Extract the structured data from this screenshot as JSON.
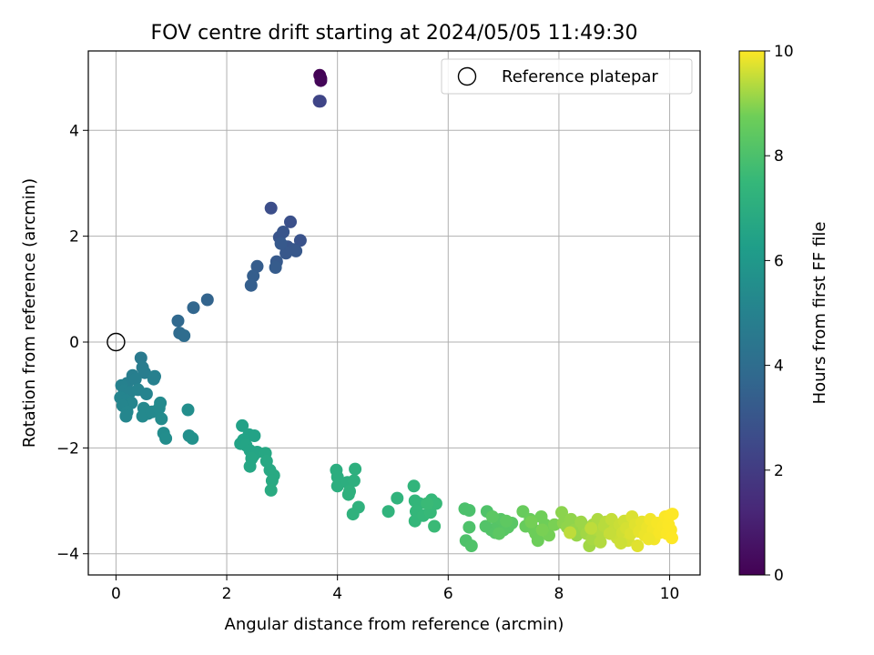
{
  "chart_data": {
    "type": "scatter",
    "title": "FOV centre drift starting at 2024/05/05 11:49:30",
    "xlabel": "Angular distance from reference (arcmin)",
    "ylabel": "Rotation from reference (arcmin)",
    "xlim": [
      -0.5,
      10.55
    ],
    "ylim": [
      -4.4,
      5.5
    ],
    "xticks": [
      0,
      2,
      4,
      6,
      8,
      10
    ],
    "yticks": [
      -4,
      -2,
      0,
      2,
      4
    ],
    "grid": true,
    "legend": {
      "placement": "upper-right",
      "entries": [
        "Reference platepar"
      ]
    },
    "reference": {
      "x": 0,
      "y": 0
    },
    "colorbar": {
      "label": "Hours from first FF file",
      "range": [
        0,
        10
      ],
      "ticks": [
        0,
        2,
        4,
        6,
        8,
        10
      ],
      "colormap": "viridis"
    },
    "points": [
      [
        3.68,
        5.04,
        0.05
      ],
      [
        3.7,
        4.98,
        0.1
      ],
      [
        3.7,
        4.94,
        0.15
      ],
      [
        3.67,
        4.55,
        2.3
      ],
      [
        3.69,
        4.55,
        2.35
      ],
      [
        2.8,
        2.53,
        2.7
      ],
      [
        3.15,
        2.27,
        2.8
      ],
      [
        3.33,
        1.92,
        2.9
      ],
      [
        2.95,
        1.98,
        2.95
      ],
      [
        3.02,
        2.08,
        3.0
      ],
      [
        3.1,
        1.8,
        3.0
      ],
      [
        3.2,
        1.75,
        3.05
      ],
      [
        3.25,
        1.72,
        3.1
      ],
      [
        3.07,
        1.68,
        3.1
      ],
      [
        2.98,
        1.86,
        3.15
      ],
      [
        2.9,
        1.52,
        3.2
      ],
      [
        2.88,
        1.41,
        3.25
      ],
      [
        2.55,
        1.43,
        3.3
      ],
      [
        2.48,
        1.25,
        3.35
      ],
      [
        2.44,
        1.07,
        3.4
      ],
      [
        1.65,
        0.8,
        3.6
      ],
      [
        1.4,
        0.65,
        3.7
      ],
      [
        1.12,
        0.4,
        3.8
      ],
      [
        1.15,
        0.17,
        3.9
      ],
      [
        1.23,
        0.12,
        4.0
      ],
      [
        0.45,
        -0.3,
        4.6
      ],
      [
        0.48,
        -0.48,
        4.7
      ],
      [
        0.52,
        -0.58,
        4.75
      ],
      [
        0.3,
        -0.63,
        4.8
      ],
      [
        0.2,
        -0.78,
        4.85
      ],
      [
        0.35,
        -0.7,
        4.85
      ],
      [
        0.7,
        -0.65,
        4.9
      ],
      [
        0.68,
        -0.7,
        4.9
      ],
      [
        0.1,
        -0.82,
        4.95
      ],
      [
        0.15,
        -0.92,
        5.0
      ],
      [
        0.25,
        -0.95,
        5.0
      ],
      [
        0.4,
        -0.9,
        5.05
      ],
      [
        0.55,
        -0.98,
        5.05
      ],
      [
        0.08,
        -1.05,
        5.1
      ],
      [
        0.18,
        -1.1,
        5.1
      ],
      [
        0.28,
        -1.15,
        5.15
      ],
      [
        0.12,
        -1.2,
        5.15
      ],
      [
        0.2,
        -1.32,
        5.2
      ],
      [
        0.18,
        -1.4,
        5.2
      ],
      [
        0.5,
        -1.25,
        5.25
      ],
      [
        0.58,
        -1.35,
        5.25
      ],
      [
        0.48,
        -1.4,
        5.3
      ],
      [
        0.65,
        -1.32,
        5.3
      ],
      [
        0.8,
        -1.15,
        5.35
      ],
      [
        0.78,
        -1.25,
        5.35
      ],
      [
        0.82,
        -1.45,
        5.4
      ],
      [
        0.86,
        -1.72,
        5.45
      ],
      [
        0.9,
        -1.82,
        5.5
      ],
      [
        1.3,
        -1.28,
        5.55
      ],
      [
        1.32,
        -1.77,
        5.6
      ],
      [
        1.38,
        -1.82,
        5.65
      ],
      [
        2.28,
        -1.58,
        6.4
      ],
      [
        2.4,
        -1.75,
        6.45
      ],
      [
        2.5,
        -1.77,
        6.45
      ],
      [
        2.3,
        -1.85,
        6.5
      ],
      [
        2.25,
        -1.92,
        6.5
      ],
      [
        2.35,
        -1.95,
        6.55
      ],
      [
        2.42,
        -2.05,
        6.55
      ],
      [
        2.48,
        -2.15,
        6.6
      ],
      [
        2.55,
        -2.08,
        6.6
      ],
      [
        2.45,
        -2.2,
        6.65
      ],
      [
        2.42,
        -2.35,
        6.65
      ],
      [
        2.7,
        -2.1,
        6.7
      ],
      [
        2.72,
        -2.25,
        6.75
      ],
      [
        2.78,
        -2.42,
        6.75
      ],
      [
        2.85,
        -2.52,
        6.8
      ],
      [
        2.82,
        -2.62,
        6.8
      ],
      [
        2.8,
        -2.8,
        6.85
      ],
      [
        3.98,
        -2.42,
        7.0
      ],
      [
        4.0,
        -2.55,
        7.0
      ],
      [
        4.0,
        -2.72,
        7.05
      ],
      [
        4.18,
        -2.65,
        7.05
      ],
      [
        4.32,
        -2.4,
        7.1
      ],
      [
        4.3,
        -2.62,
        7.1
      ],
      [
        4.22,
        -2.82,
        7.15
      ],
      [
        4.2,
        -2.88,
        7.15
      ],
      [
        4.28,
        -3.25,
        7.2
      ],
      [
        4.38,
        -3.12,
        7.2
      ],
      [
        4.92,
        -3.2,
        7.3
      ],
      [
        5.08,
        -2.95,
        7.3
      ],
      [
        5.38,
        -2.72,
        7.35
      ],
      [
        5.4,
        -3.0,
        7.4
      ],
      [
        5.48,
        -3.05,
        7.4
      ],
      [
        5.42,
        -3.2,
        7.45
      ],
      [
        5.4,
        -3.38,
        7.45
      ],
      [
        5.55,
        -3.28,
        7.5
      ],
      [
        5.7,
        -2.98,
        7.5
      ],
      [
        5.78,
        -3.05,
        7.55
      ],
      [
        5.68,
        -3.22,
        7.55
      ],
      [
        5.75,
        -3.48,
        7.6
      ],
      [
        5.62,
        -3.05,
        7.6
      ],
      [
        6.3,
        -3.15,
        8.0
      ],
      [
        6.38,
        -3.18,
        8.0
      ],
      [
        6.38,
        -3.5,
        8.05
      ],
      [
        6.32,
        -3.75,
        8.05
      ],
      [
        6.42,
        -3.85,
        8.1
      ],
      [
        6.7,
        -3.2,
        8.1
      ],
      [
        6.68,
        -3.48,
        8.15
      ],
      [
        6.78,
        -3.55,
        8.15
      ],
      [
        6.85,
        -3.6,
        8.2
      ],
      [
        6.9,
        -3.45,
        8.2
      ],
      [
        6.95,
        -3.35,
        8.25
      ],
      [
        7.0,
        -3.55,
        8.25
      ],
      [
        7.08,
        -3.5,
        8.3
      ],
      [
        7.15,
        -3.42,
        8.3
      ],
      [
        6.8,
        -3.3,
        8.35
      ],
      [
        6.92,
        -3.62,
        8.35
      ],
      [
        7.05,
        -3.38,
        8.4
      ],
      [
        7.35,
        -3.2,
        8.6
      ],
      [
        7.4,
        -3.48,
        8.6
      ],
      [
        7.48,
        -3.35,
        8.65
      ],
      [
        7.55,
        -3.55,
        8.65
      ],
      [
        7.58,
        -3.62,
        8.7
      ],
      [
        7.62,
        -3.75,
        8.7
      ],
      [
        7.68,
        -3.3,
        8.75
      ],
      [
        7.75,
        -3.45,
        8.75
      ],
      [
        7.82,
        -3.65,
        8.8
      ],
      [
        7.5,
        -3.4,
        8.8
      ],
      [
        7.7,
        -3.55,
        8.85
      ],
      [
        7.92,
        -3.45,
        8.85
      ],
      [
        8.05,
        -3.22,
        9.0
      ],
      [
        8.08,
        -3.42,
        9.0
      ],
      [
        8.15,
        -3.5,
        9.05
      ],
      [
        8.22,
        -3.35,
        9.05
      ],
      [
        8.28,
        -3.55,
        9.1
      ],
      [
        8.32,
        -3.65,
        9.1
      ],
      [
        8.4,
        -3.4,
        9.15
      ],
      [
        8.45,
        -3.48,
        9.15
      ],
      [
        8.5,
        -3.62,
        9.2
      ],
      [
        8.55,
        -3.85,
        9.2
      ],
      [
        8.6,
        -3.72,
        9.25
      ],
      [
        8.62,
        -3.45,
        9.25
      ],
      [
        8.68,
        -3.55,
        9.3
      ],
      [
        8.7,
        -3.35,
        9.3
      ],
      [
        8.75,
        -3.78,
        9.35
      ],
      [
        8.78,
        -3.62,
        9.35
      ],
      [
        8.82,
        -3.48,
        9.4
      ],
      [
        8.85,
        -3.4,
        9.4
      ],
      [
        8.2,
        -3.6,
        9.45
      ],
      [
        8.58,
        -3.52,
        9.45
      ],
      [
        8.95,
        -3.35,
        9.5
      ],
      [
        9.0,
        -3.55,
        9.5
      ],
      [
        9.05,
        -3.7,
        9.55
      ],
      [
        9.1,
        -3.45,
        9.55
      ],
      [
        9.15,
        -3.6,
        9.6
      ],
      [
        9.18,
        -3.38,
        9.6
      ],
      [
        9.22,
        -3.52,
        9.65
      ],
      [
        9.25,
        -3.75,
        9.65
      ],
      [
        9.3,
        -3.62,
        9.7
      ],
      [
        9.32,
        -3.3,
        9.7
      ],
      [
        9.38,
        -3.45,
        9.75
      ],
      [
        9.42,
        -3.85,
        9.75
      ],
      [
        9.45,
        -3.58,
        9.8
      ],
      [
        9.5,
        -3.4,
        9.8
      ],
      [
        9.55,
        -3.65,
        9.85
      ],
      [
        9.6,
        -3.5,
        9.85
      ],
      [
        9.65,
        -3.35,
        9.9
      ],
      [
        9.7,
        -3.55,
        9.9
      ],
      [
        9.72,
        -3.72,
        9.92
      ],
      [
        9.78,
        -3.42,
        9.94
      ],
      [
        9.82,
        -3.6,
        9.95
      ],
      [
        9.88,
        -3.48,
        9.96
      ],
      [
        9.92,
        -3.3,
        9.97
      ],
      [
        9.95,
        -3.62,
        9.98
      ],
      [
        9.98,
        -3.45,
        9.98
      ],
      [
        10.0,
        -3.28,
        9.99
      ],
      [
        10.02,
        -3.55,
        9.99
      ],
      [
        10.04,
        -3.7,
        10.0
      ],
      [
        10.05,
        -3.25,
        10.0
      ],
      [
        9.62,
        -3.72,
        9.88
      ],
      [
        9.12,
        -3.8,
        9.58
      ],
      [
        8.92,
        -3.62,
        9.52
      ]
    ]
  }
}
